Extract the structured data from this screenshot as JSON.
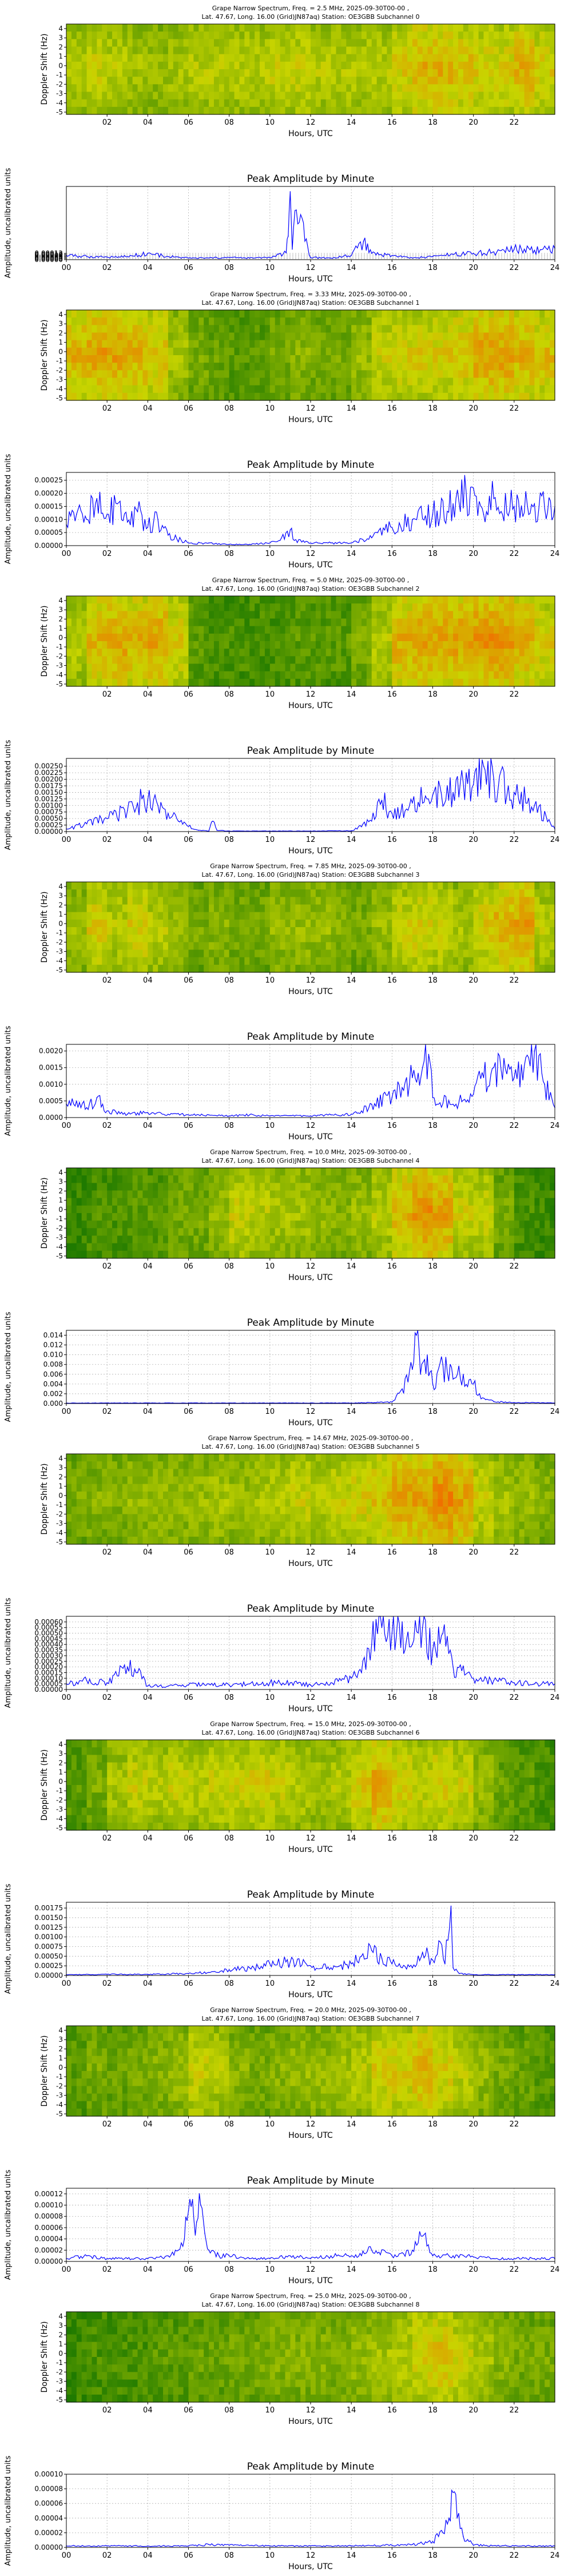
{
  "xaxis": {
    "label": "Hours, UTC",
    "spec_ticks": [
      "02",
      "04",
      "06",
      "08",
      "10",
      "12",
      "14",
      "16",
      "18",
      "20",
      "22"
    ],
    "peak_ticks": [
      "00",
      "02",
      "04",
      "06",
      "08",
      "10",
      "12",
      "14",
      "16",
      "18",
      "20",
      "22",
      "24"
    ]
  },
  "spectrogram": {
    "ylabel": "Doppler Shift (Hz)",
    "yticks": [
      "4",
      "3",
      "2",
      "1",
      "0",
      "-1",
      "-2",
      "-3",
      "-4",
      "-5"
    ]
  },
  "peak_title": "Peak Amplitude by Minute",
  "peak_ylabel": "Amplitude, uncalibrated units",
  "colors": {
    "line": "#0000ff",
    "grid": "#b0b0b0",
    "spec_low": "#1f7a00",
    "spec_mid": "#c8d400",
    "spec_high": "#f07000"
  },
  "chart_data": [
    {
      "type": "heatmap",
      "title": "Grape Narrow Spectrum, Freq. = 2.5 MHz, 2025-09-30T00-00 ,",
      "subtitle": "Lat.  47.67, Long.  16.00 (Grid)JN87aq) Station: OE3GBB Subchannel 0",
      "ylabel": "Doppler Shift (Hz)",
      "xlabel": "Hours, UTC",
      "xlim": [
        0,
        24
      ],
      "ylim": [
        -5,
        4.5
      ]
    },
    {
      "type": "line",
      "title": "Peak Amplitude by Minute",
      "xlabel": "Hours, UTC",
      "ylabel": "Amplitude, uncalibrated units",
      "xlim": [
        0,
        24
      ],
      "ylim": [
        0,
        0.0014
      ],
      "yticks": [
        "0.00000",
        "0.00002",
        "0.00004",
        "0.00006",
        "0.00008",
        "0.00010",
        "0.00012"
      ],
      "x": [
        0,
        1,
        2,
        3,
        4,
        5,
        6,
        7,
        8,
        9,
        10,
        10.8,
        10.9,
        11,
        11.1,
        11.3,
        12,
        13,
        14,
        14.6,
        15,
        16,
        17,
        18,
        19,
        20,
        21,
        22,
        23,
        24
      ],
      "y": [
        8e-05,
        6e-05,
        5e-05,
        6e-05,
        0.00012,
        6e-05,
        3e-05,
        3e-05,
        4e-05,
        3e-05,
        4e-05,
        0.00013,
        0.00045,
        0.0013,
        0.0002,
        0.00095,
        4e-05,
        3e-05,
        8e-05,
        0.00035,
        0.00012,
        8e-05,
        3e-05,
        6e-05,
        0.0001,
        0.00012,
        0.00015,
        0.0002,
        0.00018,
        0.00022
      ]
    },
    {
      "type": "heatmap",
      "title": "Grape Narrow Spectrum, Freq. = 3.33 MHz, 2025-09-30T00-00 ,",
      "subtitle": "Lat.  47.67, Long.  16.00 (Grid)JN87aq) Station: OE3GBB Subchannel 1",
      "ylabel": "Doppler Shift (Hz)",
      "xlabel": "Hours, UTC",
      "xlim": [
        0,
        24
      ],
      "ylim": [
        -5,
        4.5
      ]
    },
    {
      "type": "line",
      "title": "Peak Amplitude by Minute",
      "xlabel": "Hours, UTC",
      "ylabel": "Amplitude, uncalibrated units",
      "xlim": [
        0,
        24
      ],
      "ylim": [
        0,
        0.00028
      ],
      "yticks": [
        "0.00000",
        "0.00005",
        "0.00010",
        "0.00015",
        "0.00020",
        "0.00025"
      ],
      "x": [
        0,
        0.5,
        1,
        1.5,
        2,
        2.5,
        3,
        3.5,
        4,
        4.5,
        5,
        6,
        7,
        8,
        9,
        10,
        10.5,
        11,
        11.2,
        12,
        13,
        14,
        15,
        16,
        17,
        18,
        19,
        20,
        20.5,
        21,
        22,
        23,
        24
      ],
      "y": [
        8e-05,
        0.00012,
        0.0001,
        0.00018,
        0.00012,
        0.00016,
        9e-05,
        0.00013,
        7e-05,
        0.0001,
        4e-05,
        1e-05,
        1e-05,
        5e-06,
        5e-06,
        1e-05,
        2e-05,
        6e-05,
        2e-05,
        1e-05,
        1e-05,
        1e-05,
        3e-05,
        7e-05,
        0.0001,
        0.00012,
        0.00016,
        0.00022,
        0.00012,
        0.00018,
        0.00015,
        0.00016,
        0.00015
      ]
    },
    {
      "type": "heatmap",
      "title": "Grape Narrow Spectrum, Freq. = 5.0 MHz, 2025-09-30T00-00 ,",
      "subtitle": "Lat.  47.67, Long.  16.00 (Grid)JN87aq) Station: OE3GBB Subchannel 2",
      "ylabel": "Doppler Shift (Hz)",
      "xlabel": "Hours, UTC",
      "xlim": [
        0,
        24
      ],
      "ylim": [
        -5,
        4.5
      ]
    },
    {
      "type": "line",
      "title": "Peak Amplitude by Minute",
      "xlabel": "Hours, UTC",
      "ylabel": "Amplitude, uncalibrated units",
      "xlim": [
        0,
        24
      ],
      "ylim": [
        0,
        0.0028
      ],
      "yticks": [
        "0.00000",
        "0.00025",
        "0.00050",
        "0.00075",
        "0.00100",
        "0.00125",
        "0.00150",
        "0.00175",
        "0.00200",
        "0.00225",
        "0.00250"
      ],
      "x": [
        0,
        1,
        2,
        3,
        3.5,
        4,
        4.5,
        5,
        5.5,
        6,
        6.5,
        7,
        7.2,
        7.4,
        8,
        10,
        12,
        14,
        15,
        15.5,
        16,
        17,
        18,
        19,
        20,
        20.5,
        21,
        22,
        23,
        24
      ],
      "y": [
        0.0001,
        0.0003,
        0.0005,
        0.0008,
        0.0011,
        0.0012,
        0.001,
        0.0007,
        0.0004,
        0.0002,
        5e-05,
        2e-05,
        0.0004,
        5e-05,
        2e-05,
        2e-05,
        2e-05,
        3e-05,
        0.0004,
        0.0012,
        0.0007,
        0.0011,
        0.0014,
        0.0015,
        0.0018,
        0.0025,
        0.002,
        0.0015,
        0.001,
        0.0001
      ]
    },
    {
      "type": "heatmap",
      "title": "Grape Narrow Spectrum, Freq. = 7.85 MHz, 2025-09-30T00-00 ,",
      "subtitle": "Lat.  47.67, Long.  16.00 (Grid)JN87aq) Station: OE3GBB Subchannel 3",
      "ylabel": "Doppler Shift (Hz)",
      "xlabel": "Hours, UTC",
      "xlim": [
        0,
        24
      ],
      "ylim": [
        -5,
        4.5
      ]
    },
    {
      "type": "line",
      "title": "Peak Amplitude by Minute",
      "xlabel": "Hours, UTC",
      "ylabel": "Amplitude, uncalibrated units",
      "xlim": [
        0,
        24
      ],
      "ylim": [
        0,
        0.0022
      ],
      "yticks": [
        "0.0000",
        "0.0005",
        "0.0010",
        "0.0015",
        "0.0020"
      ],
      "x": [
        0,
        0.5,
        1,
        1.5,
        2,
        3,
        4,
        5,
        6,
        7,
        8,
        9,
        10,
        11,
        12,
        13,
        14,
        14.5,
        15,
        16,
        16.5,
        17,
        17.5,
        17.8,
        18,
        19,
        20,
        20.5,
        21,
        22,
        23,
        23.5,
        24
      ],
      "y": [
        0.0004,
        0.0005,
        0.0003,
        0.0006,
        0.0002,
        0.0001,
        0.00015,
        0.0001,
        8e-05,
        8e-05,
        5e-05,
        8e-05,
        5e-05,
        6e-05,
        5e-05,
        8e-05,
        0.0001,
        0.0002,
        0.0004,
        0.0006,
        0.0009,
        0.0012,
        0.0015,
        0.0019,
        0.0006,
        0.0004,
        0.0007,
        0.0012,
        0.0015,
        0.0012,
        0.002,
        0.001,
        0.0003
      ]
    },
    {
      "type": "heatmap",
      "title": "Grape Narrow Spectrum, Freq. = 10.0 MHz, 2025-09-30T00-00 ,",
      "subtitle": "Lat.  47.67, Long.  16.00 (Grid)JN87aq) Station: OE3GBB Subchannel 4",
      "ylabel": "Doppler Shift (Hz)",
      "xlabel": "Hours, UTC",
      "xlim": [
        0,
        24
      ],
      "ylim": [
        -5,
        4.5
      ]
    },
    {
      "type": "line",
      "title": "Peak Amplitude by Minute",
      "xlabel": "Hours, UTC",
      "ylabel": "Amplitude, uncalibrated units",
      "xlim": [
        0,
        24
      ],
      "ylim": [
        0,
        0.015
      ],
      "yticks": [
        "0.000",
        "0.002",
        "0.004",
        "0.006",
        "0.008",
        "0.010",
        "0.012",
        "0.014"
      ],
      "x": [
        0,
        2,
        4,
        6,
        8,
        10,
        12,
        14,
        15,
        16,
        16.5,
        17,
        17.2,
        17.4,
        17.6,
        18,
        18.5,
        19,
        19.5,
        20,
        20.3,
        20.6,
        21,
        22,
        24
      ],
      "y": [
        0.0001,
        0.0001,
        0.0001,
        0.0001,
        0.0001,
        0.0001,
        0.0001,
        0.0001,
        0.0002,
        0.0003,
        0.003,
        0.007,
        0.014,
        0.006,
        0.009,
        0.004,
        0.008,
        0.005,
        0.006,
        0.004,
        0.002,
        0.0008,
        0.0004,
        0.0002,
        0.0001
      ]
    },
    {
      "type": "heatmap",
      "title": "Grape Narrow Spectrum, Freq. = 14.67 MHz, 2025-09-30T00-00 ,",
      "subtitle": "Lat.  47.67, Long.  16.00 (Grid)JN87aq) Station: OE3GBB Subchannel 5",
      "ylabel": "Doppler Shift (Hz)",
      "xlabel": "Hours, UTC",
      "xlim": [
        0,
        24
      ],
      "ylim": [
        -5,
        4.5
      ]
    },
    {
      "type": "line",
      "title": "Peak Amplitude by Minute",
      "xlabel": "Hours, UTC",
      "ylabel": "Amplitude, uncalibrated units",
      "xlim": [
        0,
        24
      ],
      "ylim": [
        0,
        0.00065
      ],
      "yticks": [
        "0.00000",
        "0.00005",
        "0.00010",
        "0.00015",
        "0.00020",
        "0.00025",
        "0.00030",
        "0.00035",
        "0.00040",
        "0.00045",
        "0.00050",
        "0.00055",
        "0.00060"
      ],
      "x": [
        0,
        1,
        2,
        3,
        3.5,
        4,
        5,
        6,
        7,
        8,
        9,
        10,
        11,
        12,
        13,
        14,
        14.5,
        15,
        15.5,
        16,
        16.5,
        17,
        17.5,
        18,
        18.5,
        19,
        20,
        21,
        22,
        23,
        24
      ],
      "y": [
        5e-05,
        8e-05,
        6e-05,
        0.0002,
        0.00015,
        3e-05,
        3e-05,
        4e-05,
        5e-05,
        4e-05,
        5e-05,
        6e-05,
        6e-05,
        4e-05,
        6e-05,
        0.0001,
        0.00015,
        0.0004,
        0.00055,
        0.0005,
        0.0006,
        0.0004,
        0.00055,
        0.00035,
        0.0005,
        0.0002,
        0.0001,
        8e-05,
        6e-05,
        5e-05,
        5e-05
      ]
    },
    {
      "type": "heatmap",
      "title": "Grape Narrow Spectrum, Freq. = 15.0 MHz, 2025-09-30T00-00 ,",
      "subtitle": "Lat.  47.67, Long.  16.00 (Grid)JN87aq) Station: OE3GBB Subchannel 6",
      "ylabel": "Doppler Shift (Hz)",
      "xlabel": "Hours, UTC",
      "xlim": [
        0,
        24
      ],
      "ylim": [
        -5,
        4.5
      ]
    },
    {
      "type": "line",
      "title": "Peak Amplitude by Minute",
      "xlabel": "Hours, UTC",
      "ylabel": "Amplitude, uncalibrated units",
      "xlim": [
        0,
        24
      ],
      "ylim": [
        0,
        0.0019
      ],
      "yticks": [
        "0.00000",
        "0.00025",
        "0.00050",
        "0.00075",
        "0.00100",
        "0.00125",
        "0.00150",
        "0.00175"
      ],
      "x": [
        0,
        2,
        4,
        6,
        7,
        8,
        9,
        10,
        11,
        12,
        13,
        14,
        14.5,
        15,
        15.5,
        16,
        17,
        17.5,
        18,
        18.3,
        18.6,
        18.9,
        19,
        19.3,
        20,
        22,
        24
      ],
      "y": [
        2e-05,
        3e-05,
        3e-05,
        5e-05,
        8e-05,
        0.00015,
        0.0002,
        0.0003,
        0.00035,
        0.00025,
        0.0002,
        0.0003,
        0.0005,
        0.00065,
        0.00045,
        0.0003,
        0.0002,
        0.0006,
        0.0004,
        0.0009,
        0.0003,
        0.0018,
        0.0002,
        5e-05,
        2e-05,
        2e-05,
        2e-05
      ]
    },
    {
      "type": "heatmap",
      "title": "Grape Narrow Spectrum, Freq. = 20.0 MHz, 2025-09-30T00-00 ,",
      "subtitle": "Lat.  47.67, Long.  16.00 (Grid)JN87aq) Station: OE3GBB Subchannel 7",
      "ylabel": "Doppler Shift (Hz)",
      "xlabel": "Hours, UTC",
      "xlim": [
        0,
        24
      ],
      "ylim": [
        -5,
        4.5
      ]
    },
    {
      "type": "line",
      "title": "Peak Amplitude by Minute",
      "xlabel": "Hours, UTC",
      "ylabel": "Amplitude, uncalibrated units",
      "xlim": [
        0,
        24
      ],
      "ylim": [
        0,
        0.00013
      ],
      "yticks": [
        "0.00000",
        "0.00002",
        "0.00004",
        "0.00006",
        "0.00008",
        "0.00010",
        "0.00012"
      ],
      "x": [
        0,
        1,
        2,
        3,
        4,
        5,
        5.5,
        5.8,
        6,
        6.2,
        6.4,
        6.6,
        6.8,
        7,
        7.5,
        8,
        9,
        10,
        11,
        12,
        13,
        14,
        15,
        16,
        17,
        17.5,
        18,
        19,
        20,
        21,
        22,
        23,
        24
      ],
      "y": [
        5e-06,
        1e-05,
        5e-06,
        5e-06,
        5e-06,
        1e-05,
        2e-05,
        4e-05,
        9e-05,
        0.00011,
        7e-05,
        0.0001,
        5e-05,
        2e-05,
        1e-05,
        1e-05,
        5e-06,
        5e-06,
        1e-05,
        5e-06,
        1e-05,
        1e-05,
        2e-05,
        1e-05,
        2e-05,
        4.5e-05,
        1e-05,
        1e-05,
        8e-06,
        5e-06,
        5e-06,
        5e-06,
        5e-06
      ]
    },
    {
      "type": "heatmap",
      "title": "Grape Narrow Spectrum, Freq. = 25.0 MHz, 2025-09-30T00-00 ,",
      "subtitle": "Lat.  47.67, Long.  16.00 (Grid)JN87aq) Station: OE3GBB Subchannel 8",
      "ylabel": "Doppler Shift (Hz)",
      "xlabel": "Hours, UTC",
      "xlim": [
        0,
        24
      ],
      "ylim": [
        -5,
        4.5
      ]
    },
    {
      "type": "line",
      "title": "Peak Amplitude by Minute",
      "xlabel": "Hours, UTC",
      "ylabel": "Amplitude, uncalibrated units",
      "xlim": [
        0,
        24
      ],
      "ylim": [
        0,
        0.0001
      ],
      "yticks": [
        "0.00000",
        "0.00002",
        "0.00004",
        "0.00006",
        "0.00008",
        "0.00010"
      ],
      "x": [
        0,
        2,
        4,
        6,
        7,
        8,
        10,
        12,
        14,
        16,
        17,
        18,
        18.5,
        18.8,
        19,
        19.2,
        19.5,
        20,
        22,
        24
      ],
      "y": [
        2e-06,
        2e-06,
        2e-06,
        2e-06,
        4e-06,
        3e-06,
        2e-06,
        2e-06,
        2e-06,
        3e-06,
        4e-06,
        8e-06,
        2e-05,
        4e-05,
        7.5e-05,
        4e-05,
        1.5e-05,
        3e-06,
        2e-06,
        2e-06
      ]
    }
  ]
}
